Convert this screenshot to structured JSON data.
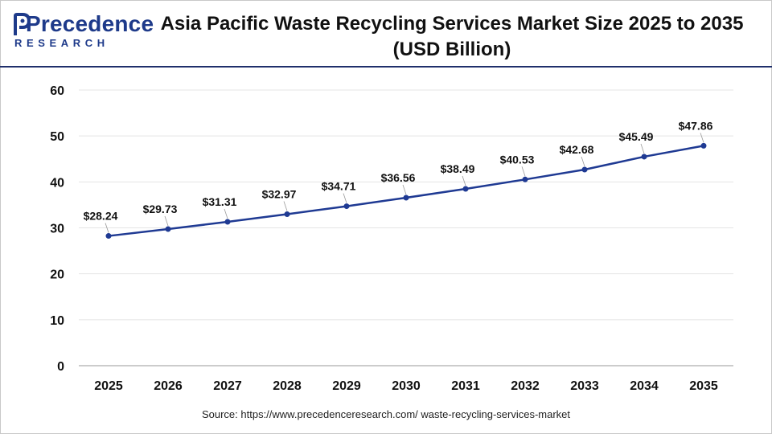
{
  "brand": {
    "name": "Precedence",
    "sub": "RESEARCH",
    "color": "#1e3a8a"
  },
  "header": {
    "title_line1": "Asia Pacific Waste Recycling Services Market Size 2025 to 2035",
    "title_line2": "(USD Billion)"
  },
  "footer": {
    "source": "Source: https://www.precedenceresearch.com/ waste-recycling-services-market"
  },
  "chart_data": {
    "type": "line",
    "title": "Asia Pacific Waste Recycling Services Market Size 2025 to 2035 (USD Billion)",
    "categories": [
      "2025",
      "2026",
      "2027",
      "2028",
      "2029",
      "2030",
      "2031",
      "2032",
      "2033",
      "2034",
      "2035"
    ],
    "series": [
      {
        "values": [
          28.24,
          29.73,
          31.31,
          32.97,
          34.71,
          36.56,
          38.49,
          40.53,
          42.68,
          45.49,
          47.86
        ],
        "labels": [
          "$28.24",
          "$29.73",
          "$31.31",
          "$32.97",
          "$34.71",
          "$36.56",
          "$38.49",
          "$40.53",
          "$42.68",
          "$45.49",
          "$47.86"
        ],
        "color": "#1f3a93"
      }
    ],
    "xlabel": "",
    "ylabel": "",
    "ylim": [
      0,
      60
    ],
    "yticks": [
      0,
      10,
      20,
      30,
      40,
      50,
      60
    ],
    "grid": true
  }
}
